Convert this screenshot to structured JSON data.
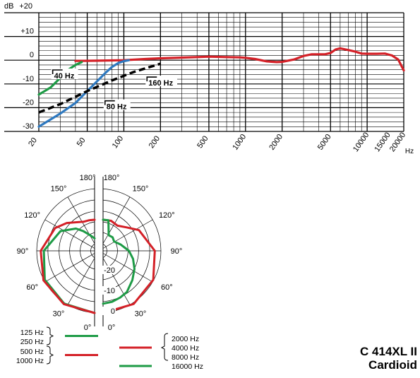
{
  "product": {
    "model": "C 414XL II",
    "pattern": "Cardioid"
  },
  "colors": {
    "red": "#d42027",
    "green": "#1e9b46",
    "blue": "#2e79c0",
    "black": "#000000"
  },
  "chart_data": [
    {
      "type": "line",
      "xscale": "log",
      "xlim": [
        20,
        20000
      ],
      "ylim": [
        -30,
        20
      ],
      "ylabel_unit": "dB",
      "xlabel_unit": "Hz",
      "yticks": [
        20,
        10,
        0,
        -10,
        -20,
        -30
      ],
      "ytick_labels": [
        "+20",
        "+10",
        "0",
        "-10",
        "-20",
        "-30"
      ],
      "xticks": [
        20,
        50,
        100,
        200,
        500,
        1000,
        2000,
        5000,
        10000,
        15000,
        20000
      ],
      "xtick_labels": [
        "20",
        "50",
        "100",
        "200",
        "500",
        "1000",
        "2000",
        "5000",
        "10000",
        "15000",
        "20000"
      ],
      "grid": true,
      "series": [
        {
          "color": "red",
          "style": "solid",
          "x": [
            40,
            60,
            100,
            150,
            200,
            300,
            400,
            500,
            700,
            900,
            1000,
            1200,
            1500,
            1800,
            2000,
            2500,
            3000,
            3500,
            4000,
            4500,
            5000,
            5500,
            6000,
            7000,
            8000,
            9000,
            10000,
            12000,
            14000,
            16000,
            18000,
            20000
          ],
          "y": [
            -0.3,
            -0.2,
            0,
            0.5,
            0.8,
            1.1,
            1.3,
            1.5,
            1.3,
            1.2,
            1.0,
            0.5,
            -0.5,
            -0.8,
            -0.7,
            0.3,
            1.8,
            2.5,
            2.5,
            2.5,
            3.0,
            4.5,
            5.0,
            4.3,
            3.6,
            2.8,
            2.7,
            2.7,
            2.8,
            2.0,
            0.3,
            -4.3
          ]
        },
        {
          "color": "green",
          "style": "solid",
          "x": [
            20,
            25,
            30,
            35,
            40,
            45
          ],
          "y": [
            -14.5,
            -11.5,
            -7.5,
            -4.0,
            -2.0,
            -0.8
          ]
        },
        {
          "color": "blue",
          "style": "solid",
          "x": [
            20,
            30,
            40,
            50,
            60,
            70,
            80,
            90,
            100,
            110
          ],
          "y": [
            -28.0,
            -22.5,
            -18.0,
            -13.0,
            -9.0,
            -5.5,
            -2.8,
            -1.2,
            -0.4,
            0.0
          ]
        },
        {
          "color": "black",
          "style": "dashed",
          "x": [
            20,
            30,
            50,
            80,
            120,
            160,
            200
          ],
          "y": [
            -22.0,
            -18.5,
            -13.0,
            -8.5,
            -5.0,
            -3.0,
            -1.5
          ]
        }
      ],
      "annotations": [
        {
          "text": "40 Hz",
          "x": 26,
          "y": -5
        },
        {
          "text": "80 Hz",
          "x": 70,
          "y": -18
        },
        {
          "text": "160 Hz",
          "x": 155,
          "y": -8
        }
      ]
    },
    {
      "type": "polar",
      "theta_labels": [
        "180°",
        "150°",
        "120°",
        "90°",
        "60°",
        "30°",
        "0°"
      ],
      "r_labels": [
        "-20",
        "-10",
        "0"
      ],
      "rlim_db": [
        -30,
        0
      ],
      "left_half": {
        "series": [
          {
            "color": "green",
            "frequencies": [
              "125 Hz",
              "250 Hz"
            ],
            "angles_deg": [
              0,
              30,
              60,
              90,
              120,
              140,
              150,
              160,
              170,
              180
            ],
            "level_db": [
              0,
              -0.6,
              -2.2,
              -5.5,
              -11.0,
              -16.0,
              -19.0,
              -21.5,
              -23.0,
              -24.0
            ]
          },
          {
            "color": "red",
            "frequencies": [
              "500 Hz",
              "1000 Hz"
            ],
            "angles_deg": [
              0,
              30,
              60,
              90,
              120,
              135,
              150,
              160,
              170,
              180
            ],
            "level_db": [
              0,
              -0.3,
              -1.5,
              -4.0,
              -8.0,
              -11.0,
              -14.0,
              -15.0,
              -15.0,
              -15.0
            ]
          }
        ]
      },
      "right_half": {
        "series": [
          {
            "color": "red",
            "frequencies": [
              "2000 Hz",
              "4000 Hz",
              "8000 Hz"
            ],
            "angles_deg": [
              0,
              30,
              60,
              90,
              120,
              135,
              150,
              165,
              180
            ],
            "level_db": [
              0,
              -0.4,
              -2.0,
              -5.0,
              -10.0,
              -14.0,
              -16.0,
              -15.0,
              -15.0
            ]
          },
          {
            "color": "green",
            "frequencies": [
              "16000 Hz"
            ],
            "angles_deg": [
              0,
              10,
              20,
              30,
              45,
              60,
              75,
              90,
              110,
              130,
              145,
              160,
              170,
              180
            ],
            "level_db": [
              -4.5,
              -5.0,
              -6.0,
              -7.0,
              -10.0,
              -12.5,
              -15.0,
              -17.5,
              -21.0,
              -23.0,
              -22.0,
              -22.0,
              -15.0,
              -15.0
            ]
          }
        ]
      },
      "legend": {
        "left": [
          {
            "labels": [
              "125 Hz",
              "250 Hz"
            ],
            "color": "green"
          },
          {
            "labels": [
              "500 Hz",
              "1000 Hz"
            ],
            "color": "red"
          }
        ],
        "right": [
          {
            "labels": [
              "2000 Hz",
              "4000 Hz",
              "8000 Hz"
            ],
            "color": "red"
          },
          {
            "labels": [
              "16000 Hz"
            ],
            "color": "green"
          }
        ]
      }
    }
  ]
}
